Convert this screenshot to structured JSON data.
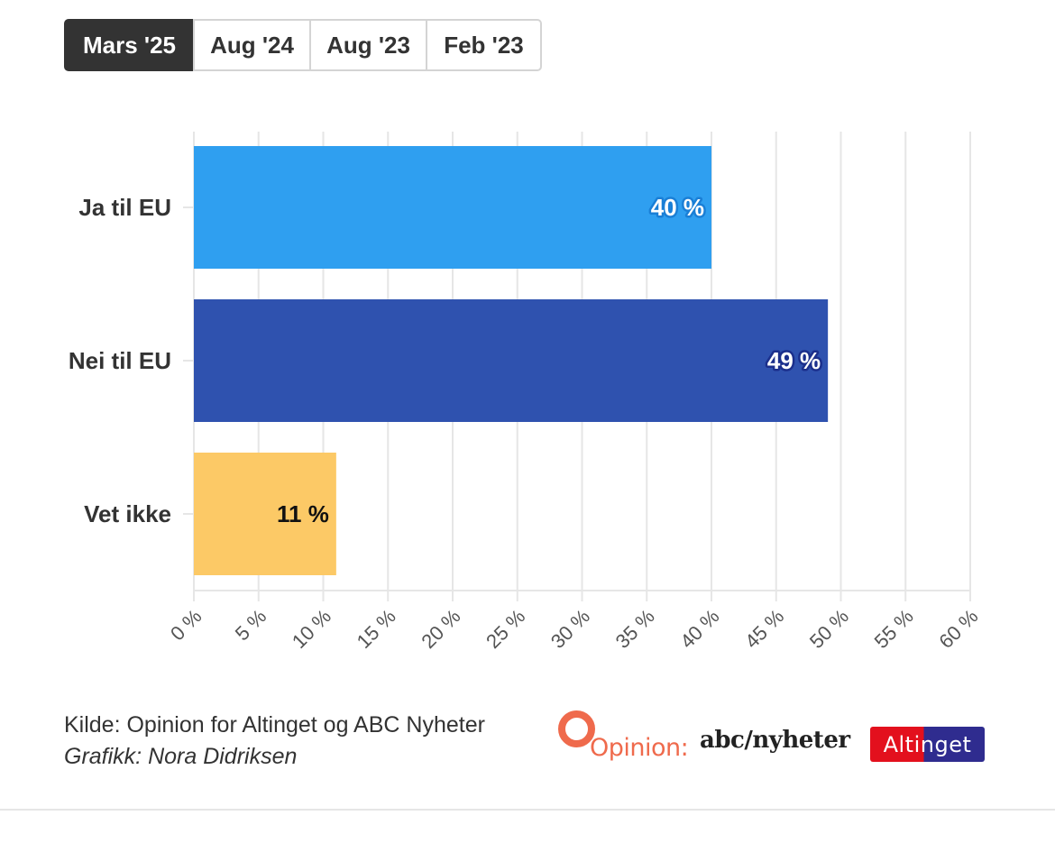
{
  "tabs": [
    {
      "label": "Mars '25",
      "active": true,
      "width": 145
    },
    {
      "label": "Aug '24",
      "active": false,
      "width": 131
    },
    {
      "label": "Aug '23",
      "active": false,
      "width": 131
    },
    {
      "label": "Feb '23",
      "active": false,
      "width": 129
    }
  ],
  "chart_data": {
    "type": "bar",
    "orientation": "horizontal",
    "categories": [
      "Ja til EU",
      "Nei til EU",
      "Vet ikke"
    ],
    "values": [
      40,
      49,
      11
    ],
    "data_labels": [
      "40 %",
      "49 %",
      "11 %"
    ],
    "colors": [
      "#2f9ff0",
      "#2f52af",
      "#fcc966"
    ],
    "label_colors": [
      "#ffffff",
      "#ffffff",
      "#111111"
    ],
    "label_halos": [
      "#1a7fd6",
      "#1b2f8c",
      "#fcc966"
    ],
    "xlim": [
      0,
      60
    ],
    "x_ticks": [
      0,
      5,
      10,
      15,
      20,
      25,
      30,
      35,
      40,
      45,
      50,
      55,
      60
    ],
    "x_tick_labels": [
      "0 %",
      "5 %",
      "10 %",
      "15 %",
      "20 %",
      "25 %",
      "30 %",
      "35 %",
      "40 %",
      "45 %",
      "50 %",
      "55 %",
      "60 %"
    ],
    "grid": true
  },
  "footer": {
    "source": "Kilde: Opinion for Altinget og ABC Nyheter",
    "credit": "Grafikk: Nora Didriksen"
  },
  "logos": {
    "opinion": "Opinion:",
    "abc": "abc/nyheter",
    "altinget": "Altinget"
  }
}
